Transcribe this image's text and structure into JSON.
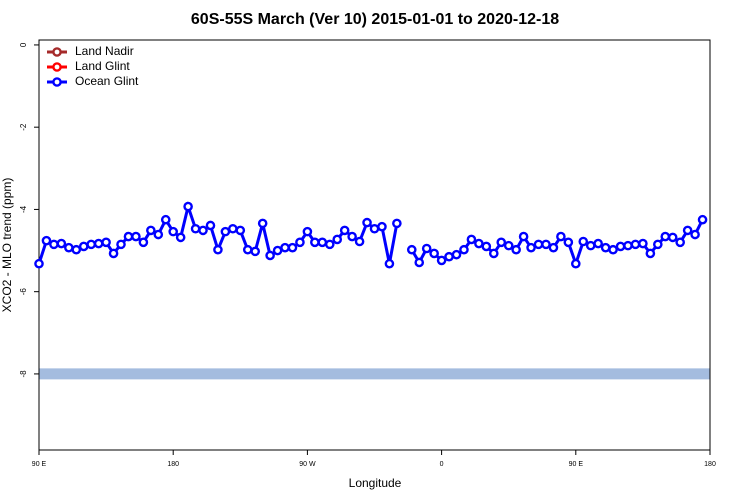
{
  "chart_data": {
    "type": "line",
    "title": "60S-55S March (Ver 10)   2015-01-01 to 2020-12-18",
    "x_label": "Longitude",
    "y_label": "XCO2 - MLO trend (ppm)",
    "xlim": [
      90,
      540
    ],
    "ylim": [
      -9.85,
      0.12
    ],
    "xticks": [
      {
        "value": 90,
        "label": "90 E"
      },
      {
        "value": 180,
        "label": "180"
      },
      {
        "value": 270,
        "label": "90 W"
      },
      {
        "value": 360,
        "label": "0"
      },
      {
        "value": 450,
        "label": "90 E"
      },
      {
        "value": 540,
        "label": "180"
      }
    ],
    "yticks": [
      0,
      -2,
      -4,
      -6,
      -8
    ],
    "hline": {
      "value": -8,
      "color": "#a4bcdf"
    },
    "legend": "top-left",
    "x": [
      90,
      95,
      100,
      105,
      110,
      115,
      120,
      125,
      130,
      135,
      140,
      145,
      150,
      155,
      160,
      165,
      170,
      175,
      180,
      185,
      190,
      195,
      200,
      205,
      210,
      215,
      220,
      225,
      230,
      235,
      240,
      245,
      250,
      255,
      260,
      265,
      270,
      275,
      280,
      285,
      290,
      295,
      300,
      305,
      310,
      315,
      320,
      325,
      330,
      335,
      340,
      345,
      350,
      355,
      360,
      365,
      370,
      375,
      380,
      385,
      390,
      395,
      400,
      405,
      410,
      415,
      420,
      425,
      430,
      435,
      440,
      445,
      450,
      455,
      460,
      465,
      470,
      475,
      480,
      485,
      490,
      495,
      500,
      505,
      510,
      515,
      520,
      525,
      530,
      535
    ],
    "series": [
      {
        "name": "Land Nadir",
        "color": "#a52a2a"
      },
      {
        "name": "Land Glint",
        "color": "#ff0000"
      },
      {
        "name": "Ocean Glint",
        "color": "#0000ff",
        "values": [
          -5.32,
          -4.76,
          -4.85,
          -4.83,
          -4.93,
          -4.98,
          -4.9,
          -4.85,
          -4.83,
          -4.8,
          -5.07,
          -4.85,
          -4.66,
          -4.66,
          -4.8,
          -4.51,
          -4.61,
          -4.25,
          -4.54,
          -4.68,
          -3.93,
          -4.47,
          -4.51,
          -4.39,
          -4.98,
          -4.54,
          -4.47,
          -4.51,
          -4.98,
          -5.02,
          -4.34,
          -5.12,
          -5.0,
          -4.93,
          -4.93,
          -4.8,
          -4.54,
          -4.8,
          -4.8,
          -4.85,
          -4.73,
          -4.51,
          -4.66,
          -4.78,
          -4.32,
          -4.47,
          -4.42,
          -5.32,
          -4.34,
          null,
          -4.98,
          -5.29,
          -4.95,
          -5.07,
          -5.24,
          -5.15,
          -5.1,
          -4.98,
          -4.73,
          -4.83,
          -4.9,
          -5.07,
          -4.8,
          -4.88,
          -4.98,
          -4.66,
          -4.93,
          -4.85,
          -4.85,
          -4.93,
          -4.66,
          -4.8,
          -5.32,
          -4.78,
          -4.88,
          -4.83,
          -4.93,
          -4.98,
          -4.9,
          -4.88,
          -4.85,
          -4.83,
          -5.07,
          -4.85,
          -4.66,
          -4.68,
          -4.8,
          -4.51,
          -4.61,
          -4.25
        ]
      }
    ]
  }
}
